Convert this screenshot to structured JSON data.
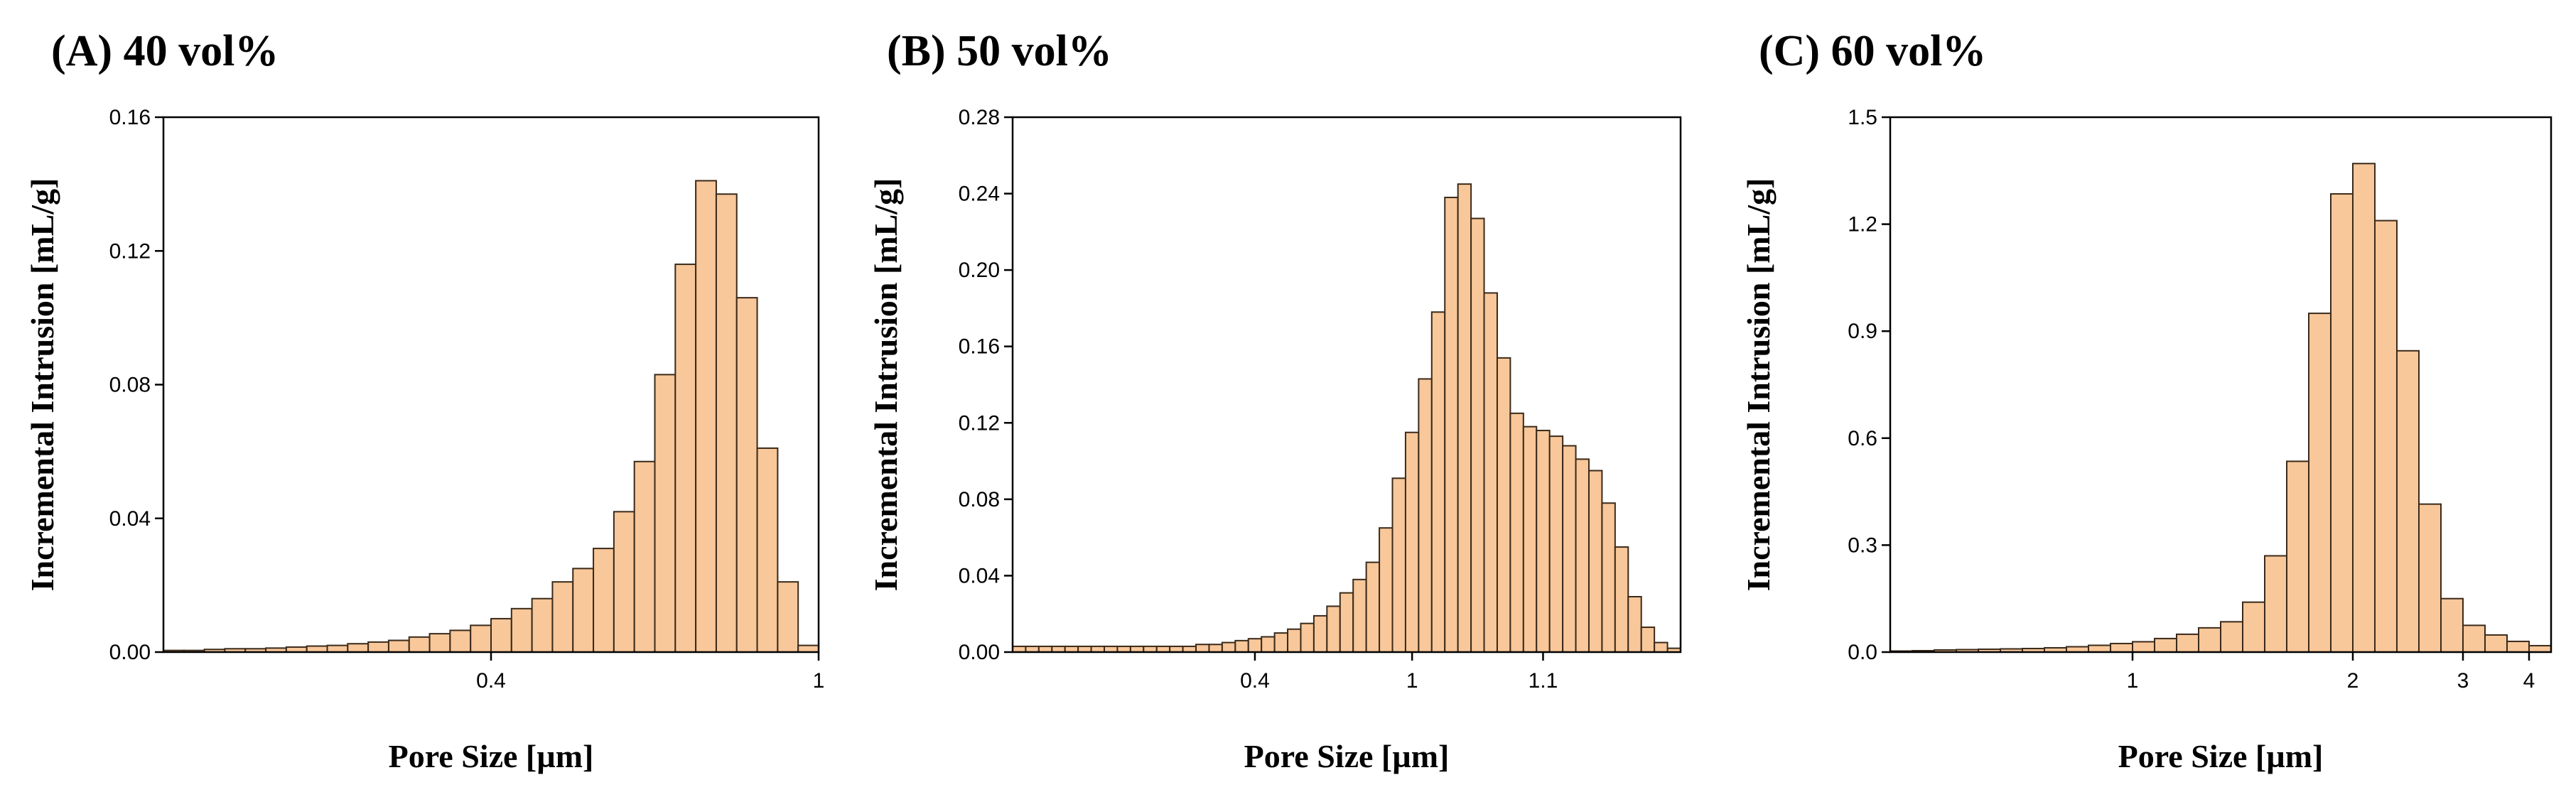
{
  "chart_data": [
    {
      "type": "bar",
      "panel": "A",
      "title": "(A) 40 vol%",
      "xlabel": "Pore Size [µm]",
      "ylabel": "Incremental Intrusion [mL/g]",
      "ylim": [
        0,
        0.16
      ],
      "yticks": [
        0.0,
        0.04,
        0.08,
        0.12,
        0.16
      ],
      "ytick_labels": [
        "0.00",
        "0.04",
        "0.08",
        "0.12",
        "0.16"
      ],
      "xticks": [
        {
          "label": "0.4",
          "bin": 16
        },
        {
          "label": "1",
          "bin": 32
        }
      ],
      "bar_color": "#f8c79a",
      "values": [
        0.0005,
        0.0005,
        0.0008,
        0.001,
        0.001,
        0.0012,
        0.0015,
        0.0018,
        0.002,
        0.0025,
        0.003,
        0.0035,
        0.0045,
        0.0055,
        0.0065,
        0.008,
        0.01,
        0.013,
        0.016,
        0.021,
        0.025,
        0.031,
        0.042,
        0.057,
        0.083,
        0.116,
        0.141,
        0.137,
        0.106,
        0.061,
        0.021,
        0.002
      ]
    },
    {
      "type": "bar",
      "panel": "B",
      "title": "(B) 50 vol%",
      "xlabel": "Pore Size [µm]",
      "ylabel": "Incremental Intrusion [mL/g]",
      "ylim": [
        0,
        0.28
      ],
      "yticks": [
        0.0,
        0.04,
        0.08,
        0.12,
        0.16,
        0.2,
        0.24,
        0.28
      ],
      "ytick_labels": [
        "0.00",
        "0.04",
        "0.08",
        "0.12",
        "0.16",
        "0.20",
        "0.24",
        "0.28"
      ],
      "xticks": [
        {
          "label": "0.4",
          "bin": 18.5
        },
        {
          "label": "1",
          "bin": 30.5
        },
        {
          "label": "1.1",
          "bin": 40.5
        }
      ],
      "bar_color": "#f8c79a",
      "values": [
        0.003,
        0.003,
        0.003,
        0.003,
        0.003,
        0.003,
        0.003,
        0.003,
        0.003,
        0.003,
        0.003,
        0.003,
        0.003,
        0.003,
        0.004,
        0.004,
        0.005,
        0.006,
        0.007,
        0.008,
        0.01,
        0.012,
        0.015,
        0.019,
        0.024,
        0.031,
        0.038,
        0.047,
        0.065,
        0.091,
        0.115,
        0.143,
        0.178,
        0.238,
        0.245,
        0.227,
        0.188,
        0.154,
        0.125,
        0.118,
        0.116,
        0.113,
        0.108,
        0.101,
        0.095,
        0.078,
        0.055,
        0.029,
        0.013,
        0.005,
        0.002
      ]
    },
    {
      "type": "bar",
      "panel": "C",
      "title": "(C) 60 vol%",
      "xlabel": "Pore Size [µm]",
      "ylabel": "Incremental Intrusion [mL/g]",
      "ylim": [
        0,
        1.5
      ],
      "yticks": [
        0.0,
        0.3,
        0.6,
        0.9,
        1.2,
        1.5
      ],
      "ytick_labels": [
        "0.0",
        "0.3",
        "0.6",
        "0.9",
        "1.2",
        "1.5"
      ],
      "xticks": [
        {
          "label": "1",
          "bin": 11
        },
        {
          "label": "2",
          "bin": 21
        },
        {
          "label": "3",
          "bin": 26
        },
        {
          "label": "4",
          "bin": 29
        }
      ],
      "bar_color": "#f8c79a",
      "values": [
        0.003,
        0.004,
        0.006,
        0.007,
        0.008,
        0.009,
        0.01,
        0.012,
        0.015,
        0.019,
        0.024,
        0.029,
        0.038,
        0.05,
        0.068,
        0.085,
        0.14,
        0.27,
        0.535,
        0.95,
        1.285,
        1.37,
        1.21,
        0.845,
        0.415,
        0.15,
        0.075,
        0.048,
        0.03,
        0.018
      ]
    }
  ]
}
